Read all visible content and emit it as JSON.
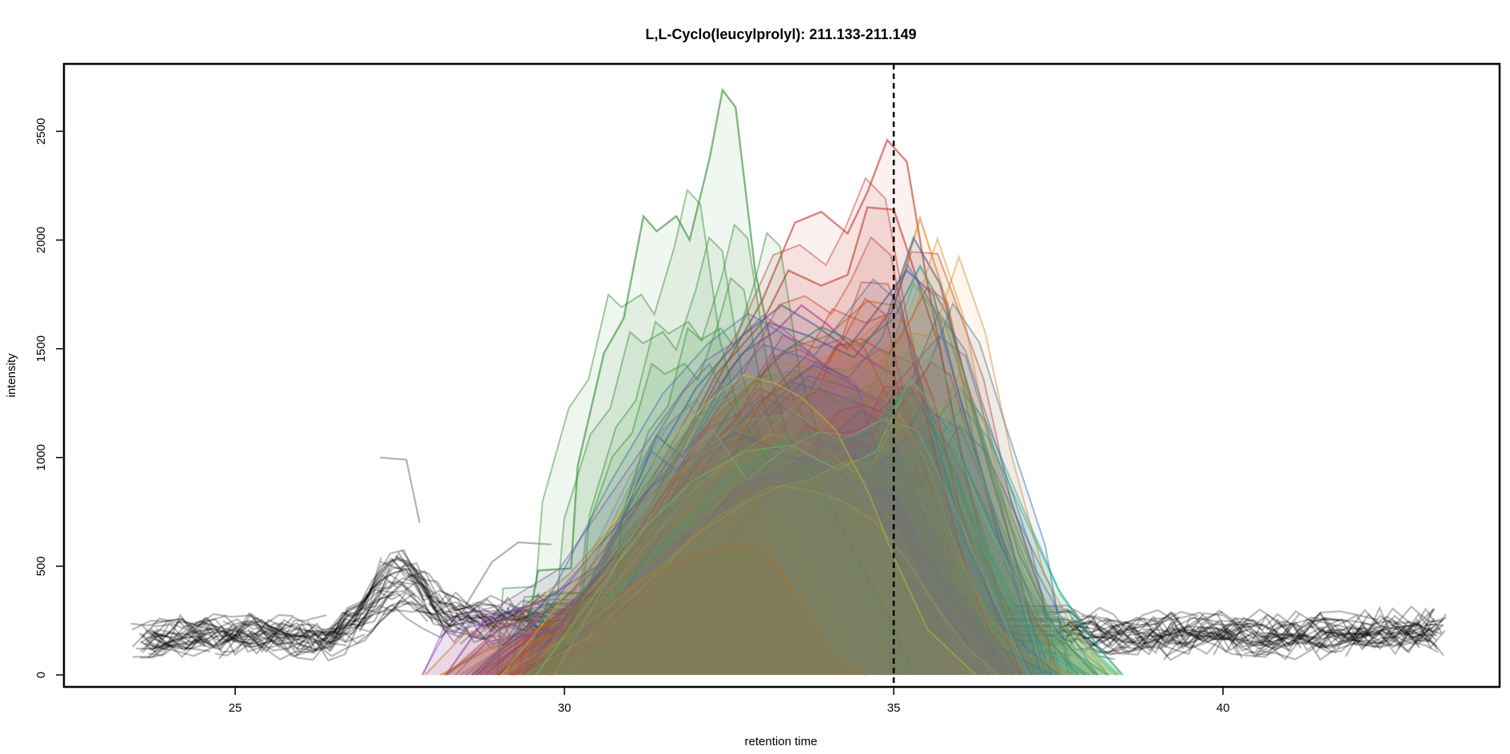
{
  "chart_data": {
    "type": "line",
    "title": "L,L-Cyclo(leucylprolyl): 211.133-211.149",
    "xlabel": "retention time",
    "ylabel": "intensity",
    "xlim": [
      22.4,
      44.2
    ],
    "ylim": [
      -55,
      2810
    ],
    "x_ticks": [
      25,
      30,
      35,
      40
    ],
    "y_ticks": [
      0,
      500,
      1000,
      1500,
      2000,
      2500
    ],
    "reference_line": {
      "x": 35.0,
      "style": "dashed"
    },
    "background_traces": {
      "color": "#000000",
      "note": "many overlapping gray chromatogram traces outside the integrated peak",
      "anchors": {
        "x": [
          23.4,
          25.0,
          26.4,
          26.9,
          27.3,
          27.6,
          28.1,
          28.6,
          29.5,
          37.6,
          38.5,
          40.0,
          41.5,
          43.3
        ],
        "y": [
          160,
          180,
          170,
          250,
          420,
          430,
          300,
          230,
          260,
          200,
          170,
          190,
          180,
          200
        ]
      },
      "outliers": [
        {
          "x": [
            27.2,
            27.6,
            27.8
          ],
          "y": [
            1000,
            990,
            700
          ]
        },
        {
          "x": [
            28.5,
            28.9,
            29.3,
            29.8
          ],
          "y": [
            320,
            520,
            610,
            600
          ]
        }
      ]
    },
    "highlight_traces": [
      {
        "name": "green-tall",
        "color": "#2e8b2e",
        "fill": true,
        "x": [
          29.3,
          29.6,
          30.1,
          30.2,
          30.6,
          30.9,
          31.2,
          31.4,
          31.7,
          31.9,
          32.2,
          32.4,
          32.6,
          32.9,
          33.2,
          33.6,
          34.0,
          34.4,
          34.8,
          35.2
        ],
        "y": [
          0,
          480,
          490,
          960,
          1480,
          1640,
          2110,
          2040,
          2110,
          2000,
          2370,
          2690,
          2610,
          1850,
          1440,
          1200,
          900,
          600,
          300,
          0
        ]
      },
      {
        "name": "red-peak",
        "color": "#c0392b",
        "fill": true,
        "x": [
          28.8,
          29.5,
          30.4,
          31.4,
          32.4,
          33.0,
          33.5,
          33.9,
          34.3,
          34.6,
          34.9,
          35.2,
          35.5,
          35.9,
          36.3,
          36.7,
          37.1
        ],
        "y": [
          0,
          180,
          400,
          820,
          1400,
          1720,
          2080,
          2130,
          2030,
          2220,
          2460,
          2360,
          1820,
          1200,
          650,
          250,
          0
        ]
      },
      {
        "name": "red-second",
        "color": "#c0392b",
        "fill": true,
        "x": [
          29.0,
          30.0,
          31.2,
          32.3,
          33.0,
          33.4,
          33.9,
          34.3,
          34.6,
          35.0,
          35.3,
          35.7,
          36.1,
          36.6,
          37.0
        ],
        "y": [
          0,
          260,
          720,
          1380,
          1620,
          1860,
          1790,
          1840,
          2150,
          2140,
          1870,
          1500,
          900,
          380,
          0
        ]
      },
      {
        "name": "orange-right",
        "color": "#d88a1c",
        "fill": true,
        "x": [
          29.2,
          30.4,
          31.6,
          32.6,
          33.4,
          34.0,
          34.6,
          35.0,
          35.4,
          35.8,
          36.2,
          36.7,
          37.2,
          37.9
        ],
        "y": [
          0,
          320,
          800,
          1260,
          1500,
          1560,
          1720,
          1700,
          2100,
          1720,
          1100,
          500,
          200,
          0
        ]
      },
      {
        "name": "blue-a",
        "color": "#3a66a7",
        "fill": true,
        "x": [
          29.0,
          30.3,
          31.2,
          32.0,
          32.7,
          33.3,
          33.8,
          34.3,
          34.8,
          35.2,
          35.6,
          36.0,
          36.6,
          37.2,
          37.8
        ],
        "y": [
          0,
          380,
          900,
          1320,
          1560,
          1700,
          1610,
          1500,
          1700,
          1860,
          1750,
          1280,
          620,
          220,
          0
        ]
      },
      {
        "name": "blue-b",
        "color": "#3a66a7",
        "fill": true,
        "x": [
          29.4,
          30.6,
          31.4,
          31.8,
          32.5,
          33.1,
          33.7,
          34.4,
          34.9,
          35.3,
          35.7,
          36.1,
          36.7,
          37.3
        ],
        "y": [
          0,
          500,
          1100,
          1000,
          1400,
          1620,
          1560,
          1460,
          1650,
          2010,
          1800,
          1350,
          700,
          0
        ]
      },
      {
        "name": "purple",
        "color": "#8e44ad",
        "fill": true,
        "x": [
          28.2,
          28.8,
          29.6,
          30.5,
          31.3,
          32.1,
          32.7,
          33.2,
          33.6,
          34.0,
          34.5,
          35.0,
          35.5,
          36.1,
          36.8
        ],
        "y": [
          0,
          260,
          330,
          500,
          860,
          1220,
          1480,
          1580,
          1700,
          1610,
          1470,
          1380,
          900,
          420,
          0
        ]
      },
      {
        "name": "teal",
        "color": "#16a085",
        "fill": true,
        "x": [
          29.6,
          30.8,
          31.8,
          32.6,
          33.3,
          33.9,
          34.5,
          35.0,
          35.4,
          35.8,
          36.3,
          36.9,
          37.5,
          38.1
        ],
        "y": [
          0,
          460,
          880,
          1250,
          1480,
          1600,
          1520,
          1640,
          1880,
          1660,
          1150,
          560,
          180,
          0
        ]
      },
      {
        "name": "gray-green",
        "color": "#8a9a8a",
        "fill": true,
        "x": [
          29.8,
          30.6,
          31.3,
          31.8,
          32.2,
          32.7,
          33.2,
          33.8,
          34.3,
          34.8,
          35.3,
          35.8,
          36.4,
          37.0
        ],
        "y": [
          0,
          560,
          1050,
          1300,
          1430,
          1140,
          1300,
          1420,
          1400,
          1500,
          1430,
          1020,
          500,
          0
        ]
      },
      {
        "name": "yellow",
        "color": "#c9c22a",
        "fill": true,
        "x": [
          29.4,
          30.4,
          31.3,
          32.1,
          32.8,
          33.3,
          33.8,
          34.2,
          34.7,
          35.2,
          35.6,
          36.1,
          36.6
        ],
        "y": [
          0,
          300,
          720,
          1100,
          1320,
          1440,
          1400,
          1330,
          1180,
          880,
          560,
          220,
          0
        ]
      },
      {
        "name": "orange-brown-fill",
        "color": "#c0691a",
        "fill": true,
        "x": [
          28.2,
          29.0,
          29.8,
          30.6,
          31.4,
          32.2,
          32.8,
          33.1,
          33.4,
          33.7,
          34.0,
          34.3,
          34.6
        ],
        "y": [
          0,
          210,
          300,
          520,
          820,
          1020,
          1100,
          1060,
          900,
          640,
          380,
          120,
          0
        ]
      },
      {
        "name": "green-light",
        "color": "#6abf69",
        "fill": true,
        "x": [
          29.6,
          30.4,
          31.2,
          32.0,
          32.8,
          33.5,
          34.2,
          34.8,
          35.3,
          35.8,
          36.5,
          37.3,
          38.4
        ],
        "y": [
          0,
          420,
          860,
          1180,
          1360,
          1400,
          1250,
          1360,
          1800,
          1600,
          900,
          300,
          0
        ]
      }
    ]
  }
}
